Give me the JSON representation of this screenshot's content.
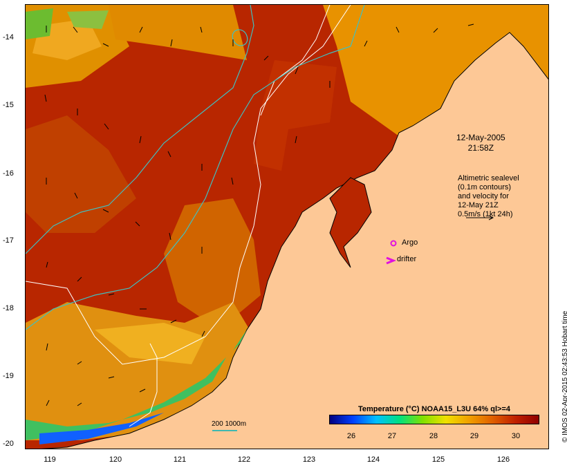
{
  "map": {
    "timestamp_line1": "12-May-2005",
    "timestamp_line2": "21:58Z",
    "altimetry_lines": [
      "Altimetric sealevel",
      "(0.1m contours)",
      "and velocity for",
      "12-May 21Z",
      "0.5m/s (1kt 24h)"
    ],
    "argo_label": "Argo",
    "drifter_label": "drifter",
    "depth_legend": "200  1000m",
    "credit": "© IMOS 02-Apr-2015 02:43:53 Hobart time",
    "lat_ticks": [
      "-14",
      "-15",
      "-16",
      "-17",
      "-18",
      "-19",
      "-20"
    ],
    "lon_ticks": [
      "119",
      "120",
      "121",
      "122",
      "123",
      "124",
      "125",
      "126"
    ],
    "colors": {
      "land": "#fdc896",
      "sst_warm": "#a81800",
      "sst_mid": "#cc5200",
      "contour": "#40c0c0",
      "bathymetry": "#ffffff",
      "argo": "#e010e0"
    }
  },
  "legend": {
    "title": "Temperature (°C) NOAA15_L3U 64% ql>=4",
    "ticks": [
      "26",
      "27",
      "28",
      "29",
      "30"
    ],
    "colors": [
      "#000080",
      "#0040ff",
      "#00c0ff",
      "#00e080",
      "#80e000",
      "#f0e000",
      "#f0a000",
      "#e06000",
      "#c02000",
      "#900000"
    ]
  }
}
